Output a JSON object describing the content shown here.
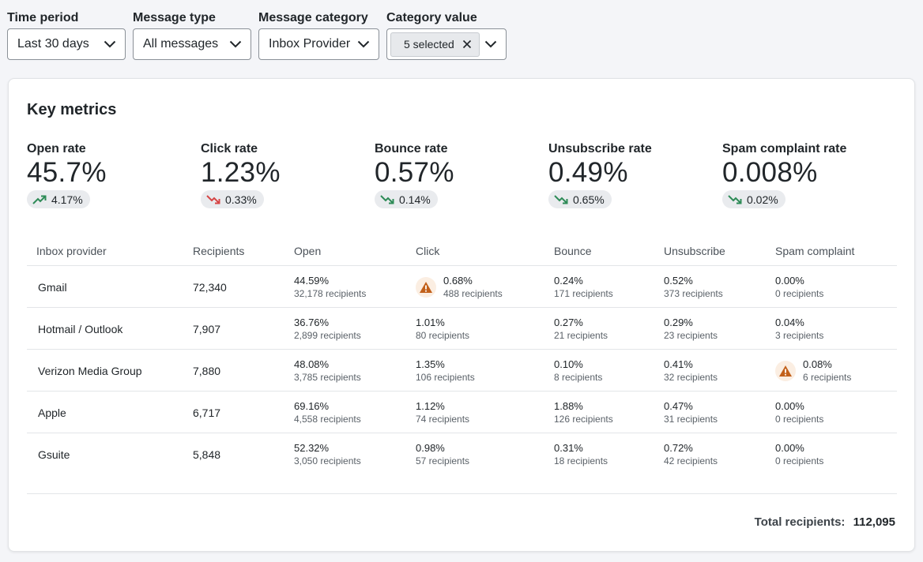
{
  "filters": [
    {
      "label": "Time period",
      "value": "Last 30 days"
    },
    {
      "label": "Message type",
      "value": "All messages"
    },
    {
      "label": "Message category",
      "value": "Inbox Provider"
    },
    {
      "label": "Category value",
      "chip": "5 selected"
    }
  ],
  "card": {
    "title": "Key metrics",
    "metrics": [
      {
        "label": "Open rate",
        "value": "45.7%",
        "delta": "4.17%",
        "trend": "up",
        "trend_color": "#2e8b57"
      },
      {
        "label": "Click rate",
        "value": "1.23%",
        "delta": "0.33%",
        "trend": "down",
        "trend_color": "#d64545"
      },
      {
        "label": "Bounce rate",
        "value": "0.57%",
        "delta": "0.14%",
        "trend": "down",
        "trend_color": "#2e8b57"
      },
      {
        "label": "Unsubscribe rate",
        "value": "0.49%",
        "delta": "0.65%",
        "trend": "down",
        "trend_color": "#2e8b57"
      },
      {
        "label": "Spam complaint rate",
        "value": "0.008%",
        "delta": "0.02%",
        "trend": "down",
        "trend_color": "#2e8b57"
      }
    ],
    "table": {
      "headers": [
        "Inbox provider",
        "Recipients",
        "Open",
        "Click",
        "Bounce",
        "Unsubscribe",
        "Spam complaint"
      ],
      "rows": [
        {
          "provider": "Gmail",
          "recipients": "72,340",
          "open": {
            "pct": "44.59%",
            "rc": "32,178 recipients"
          },
          "click": {
            "pct": "0.68%",
            "rc": "488 recipients",
            "warn": true
          },
          "bounce": {
            "pct": "0.24%",
            "rc": "171 recipients"
          },
          "unsub": {
            "pct": "0.52%",
            "rc": "373 recipients"
          },
          "spam": {
            "pct": "0.00%",
            "rc": "0 recipients"
          }
        },
        {
          "provider": "Hotmail / Outlook",
          "recipients": "7,907",
          "open": {
            "pct": "36.76%",
            "rc": "2,899 recipients"
          },
          "click": {
            "pct": "1.01%",
            "rc": "80 recipients"
          },
          "bounce": {
            "pct": "0.27%",
            "rc": "21 recipients"
          },
          "unsub": {
            "pct": "0.29%",
            "rc": "23 recipients"
          },
          "spam": {
            "pct": "0.04%",
            "rc": "3 recipients"
          }
        },
        {
          "provider": "Verizon Media Group",
          "recipients": "7,880",
          "open": {
            "pct": "48.08%",
            "rc": "3,785 recipients"
          },
          "click": {
            "pct": "1.35%",
            "rc": "106 recipients"
          },
          "bounce": {
            "pct": "0.10%",
            "rc": "8 recipients"
          },
          "unsub": {
            "pct": "0.41%",
            "rc": "32 recipients"
          },
          "spam": {
            "pct": "0.08%",
            "rc": "6 recipients",
            "warn": true
          }
        },
        {
          "provider": "Apple",
          "recipients": "6,717",
          "open": {
            "pct": "69.16%",
            "rc": "4,558 recipients"
          },
          "click": {
            "pct": "1.12%",
            "rc": "74 recipients"
          },
          "bounce": {
            "pct": "1.88%",
            "rc": "126 recipients"
          },
          "unsub": {
            "pct": "0.47%",
            "rc": "31 recipients"
          },
          "spam": {
            "pct": "0.00%",
            "rc": "0 recipients"
          }
        },
        {
          "provider": "Gsuite",
          "recipients": "5,848",
          "open": {
            "pct": "52.32%",
            "rc": "3,050 recipients"
          },
          "click": {
            "pct": "0.98%",
            "rc": "57 recipients"
          },
          "bounce": {
            "pct": "0.31%",
            "rc": "18 recipients"
          },
          "unsub": {
            "pct": "0.72%",
            "rc": "42 recipients"
          },
          "spam": {
            "pct": "0.00%",
            "rc": "0 recipients"
          }
        }
      ]
    },
    "total_label": "Total recipients:",
    "total_value": "112,095"
  },
  "colors": {
    "warning": "#c2601a",
    "warning_bg": "#fbeee2",
    "trend_up": "#2e8b57",
    "trend_down_bad": "#d64545"
  }
}
